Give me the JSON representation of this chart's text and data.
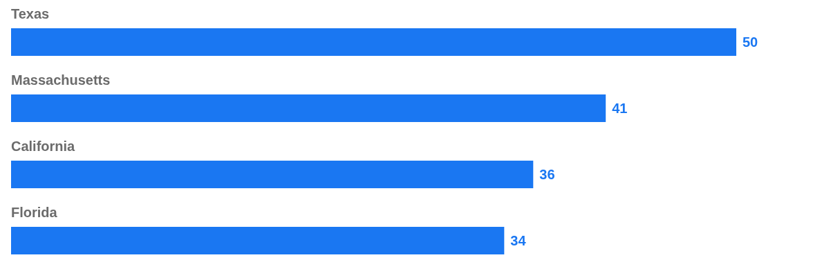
{
  "chart_data": {
    "type": "bar",
    "orientation": "horizontal",
    "categories": [
      "Texas",
      "Massachusetts",
      "California",
      "Florida"
    ],
    "values": [
      50,
      41,
      36,
      34
    ],
    "color": "#1a77f2",
    "data_labels": true
  }
}
